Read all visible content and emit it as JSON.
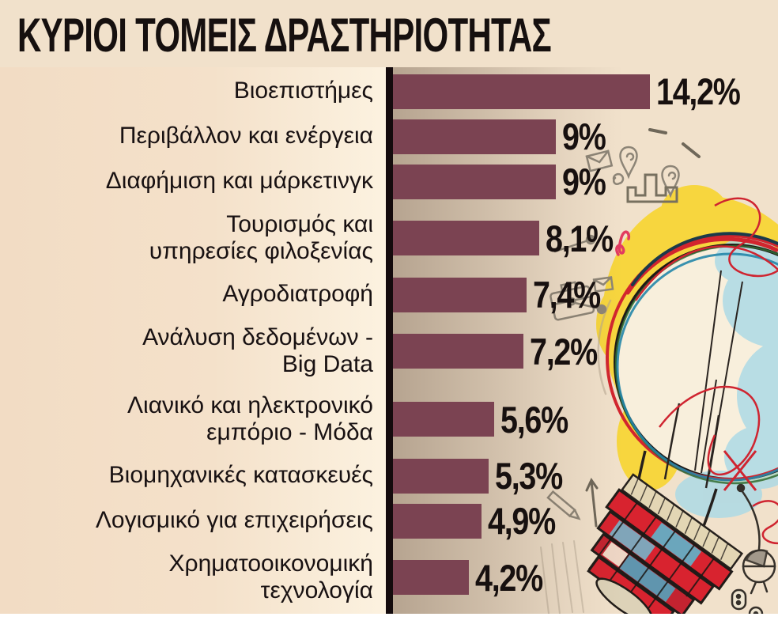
{
  "title": "ΚΥΡΙΟΙ ΤΟΜΕΙΣ ΔΡΑΣΤΗΡΙΟΤΗΤΑΣ",
  "chart_data": {
    "type": "bar",
    "orientation": "horizontal",
    "title": "ΚΥΡΙΟΙ ΤΟΜΕΙΣ ΔΡΑΣΤΗΡΙΟΤΗΤΑΣ",
    "unit": "%",
    "categories": [
      "Βιοεπιστήμες",
      "Περιβάλλον και ενέργεια",
      "Διαφήμιση και μάρκετινγκ",
      "Τουρισμός και υπηρεσίες φιλοξενίας",
      "Αγροδιατροφή",
      "Ανάλυση δεδομένων - Big Data",
      "Λιανικό και ηλεκτρονικό εμπόριο - Μόδα",
      "Βιομηχανικές κατασκευές",
      "Λογισμικό για επιχειρήσεις",
      "Χρηματοοικονομική τεχνολογία"
    ],
    "values": [
      14.2,
      9,
      9,
      8.1,
      7.4,
      7.2,
      5.6,
      5.3,
      4.9,
      4.2
    ],
    "value_labels": [
      "14,2%",
      "9%",
      "9%",
      "8,1%",
      "7,4%",
      "7,2%",
      "5,6%",
      "5,3%",
      "4,9%",
      "4,2%"
    ],
    "xlim": [
      0,
      14.2
    ],
    "grid": false,
    "legend": false,
    "axis_line": "vertical-left-black"
  },
  "rows": [
    {
      "label_lines": [
        "Βιοεπιστήμες"
      ],
      "value": 14.2,
      "value_label": "14,2%"
    },
    {
      "label_lines": [
        "Περιβάλλον και ενέργεια"
      ],
      "value": 9,
      "value_label": "9%"
    },
    {
      "label_lines": [
        "Διαφήμιση και μάρκετινγκ"
      ],
      "value": 9,
      "value_label": "9%"
    },
    {
      "label_lines": [
        "Τουρισμός και",
        "υπηρεσίες φιλοξενίας"
      ],
      "value": 8.1,
      "value_label": "8,1%"
    },
    {
      "label_lines": [
        "Αγροδιατροφή"
      ],
      "value": 7.4,
      "value_label": "7,4%"
    },
    {
      "label_lines": [
        "Ανάλυση δεδομένων -",
        "Big Data"
      ],
      "value": 7.2,
      "value_label": "7,2%"
    },
    {
      "label_lines": [
        "Λιανικό και ηλεκτρονικό",
        "εμπόριο - Μόδα"
      ],
      "value": 5.6,
      "value_label": "5,6%"
    },
    {
      "label_lines": [
        "Βιομηχανικές κατασκευές"
      ],
      "value": 5.3,
      "value_label": "5,3%"
    },
    {
      "label_lines": [
        "Λογισμικό για επιχειρήσεις"
      ],
      "value": 4.9,
      "value_label": "4,9%"
    },
    {
      "label_lines": [
        "Χρηματοοικονομική",
        "τεχνολογία"
      ],
      "value": 4.2,
      "value_label": "4,2%"
    }
  ],
  "colors": {
    "background": "#f1e1cb",
    "bar": "#7b4352",
    "axis": "#140b0d",
    "text": "#17100f",
    "bulb_yellow": "#f7d63e",
    "sketch_red": "#d2252e",
    "sketch_teal": "#4fa9c4",
    "doodle_gray": "#8d8577"
  },
  "illustration": {
    "name": "hand-drawn-lightbulb-sketch",
    "elements": [
      "lightbulb-icon",
      "crown-icon",
      "location-pin-icon",
      "envelope-icon",
      "briefcase-icon",
      "pencil-icon",
      "arrow-up-icon",
      "coin-icons",
      "red-scribbles"
    ]
  }
}
